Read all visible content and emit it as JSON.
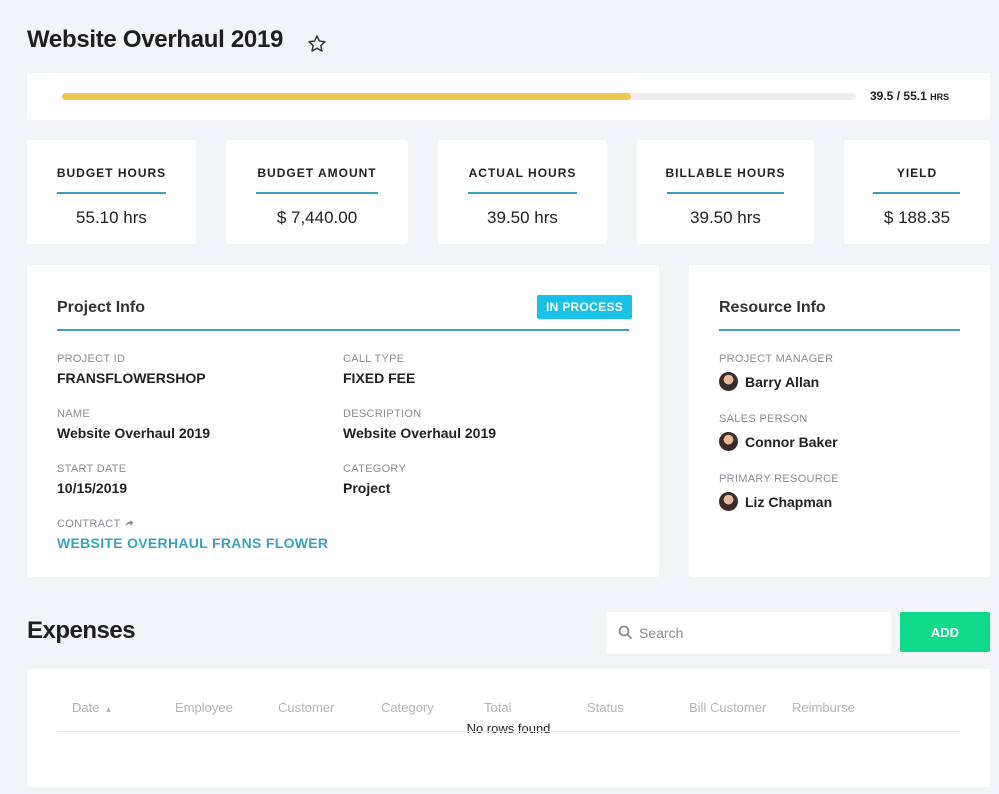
{
  "page": {
    "title": "Website Overhaul 2019"
  },
  "progress": {
    "actual": "39.5",
    "separator": "/",
    "budget": "55.1",
    "unit": "HRS",
    "fraction": 0.717
  },
  "stats": [
    {
      "label": "BUDGET HOURS",
      "value": "55.10 hrs"
    },
    {
      "label": "BUDGET AMOUNT",
      "value": "$ 7,440.00"
    },
    {
      "label": "ACTUAL HOURS",
      "value": "39.50 hrs"
    },
    {
      "label": "BILLABLE HOURS",
      "value": "39.50 hrs"
    },
    {
      "label": "YIELD",
      "value": "$ 188.35"
    }
  ],
  "project": {
    "title": "Project Info",
    "status": "IN PROCESS",
    "fields": {
      "project_id": {
        "label": "PROJECT ID",
        "value": "FRANSFLOWERSHOP"
      },
      "call_type": {
        "label": "CALL TYPE",
        "value": "FIXED FEE"
      },
      "name": {
        "label": "NAME",
        "value": "Website Overhaul 2019"
      },
      "description": {
        "label": "DESCRIPTION",
        "value": "Website Overhaul 2019"
      },
      "start_date": {
        "label": "START DATE",
        "value": "10/15/2019"
      },
      "category": {
        "label": "CATEGORY",
        "value": "Project"
      },
      "contract": {
        "label": "CONTRACT",
        "value": "WEBSITE OVERHAUL FRANS FLOWER"
      }
    }
  },
  "resource": {
    "title": "Resource Info",
    "people": [
      {
        "role": "PROJECT MANAGER",
        "name": "Barry Allan"
      },
      {
        "role": "SALES PERSON",
        "name": "Connor Baker"
      },
      {
        "role": "PRIMARY RESOURCE",
        "name": "Liz Chapman"
      }
    ]
  },
  "expenses": {
    "title": "Expenses",
    "search_placeholder": "Search",
    "add_label": "ADD",
    "columns": [
      "Date",
      "Employee",
      "Customer",
      "Category",
      "Total",
      "Status",
      "Bill Customer",
      "Reimburse"
    ],
    "sort_indicator": "▲",
    "empty_text": "No rows found"
  },
  "colors": {
    "accent": "#3aa1c5",
    "progress": "#f4c84f",
    "badge": "#19c0e8",
    "add": "#10d98a"
  },
  "icons": {
    "favorite": "star-icon",
    "search": "search-icon",
    "contract": "share-arrow-icon"
  }
}
